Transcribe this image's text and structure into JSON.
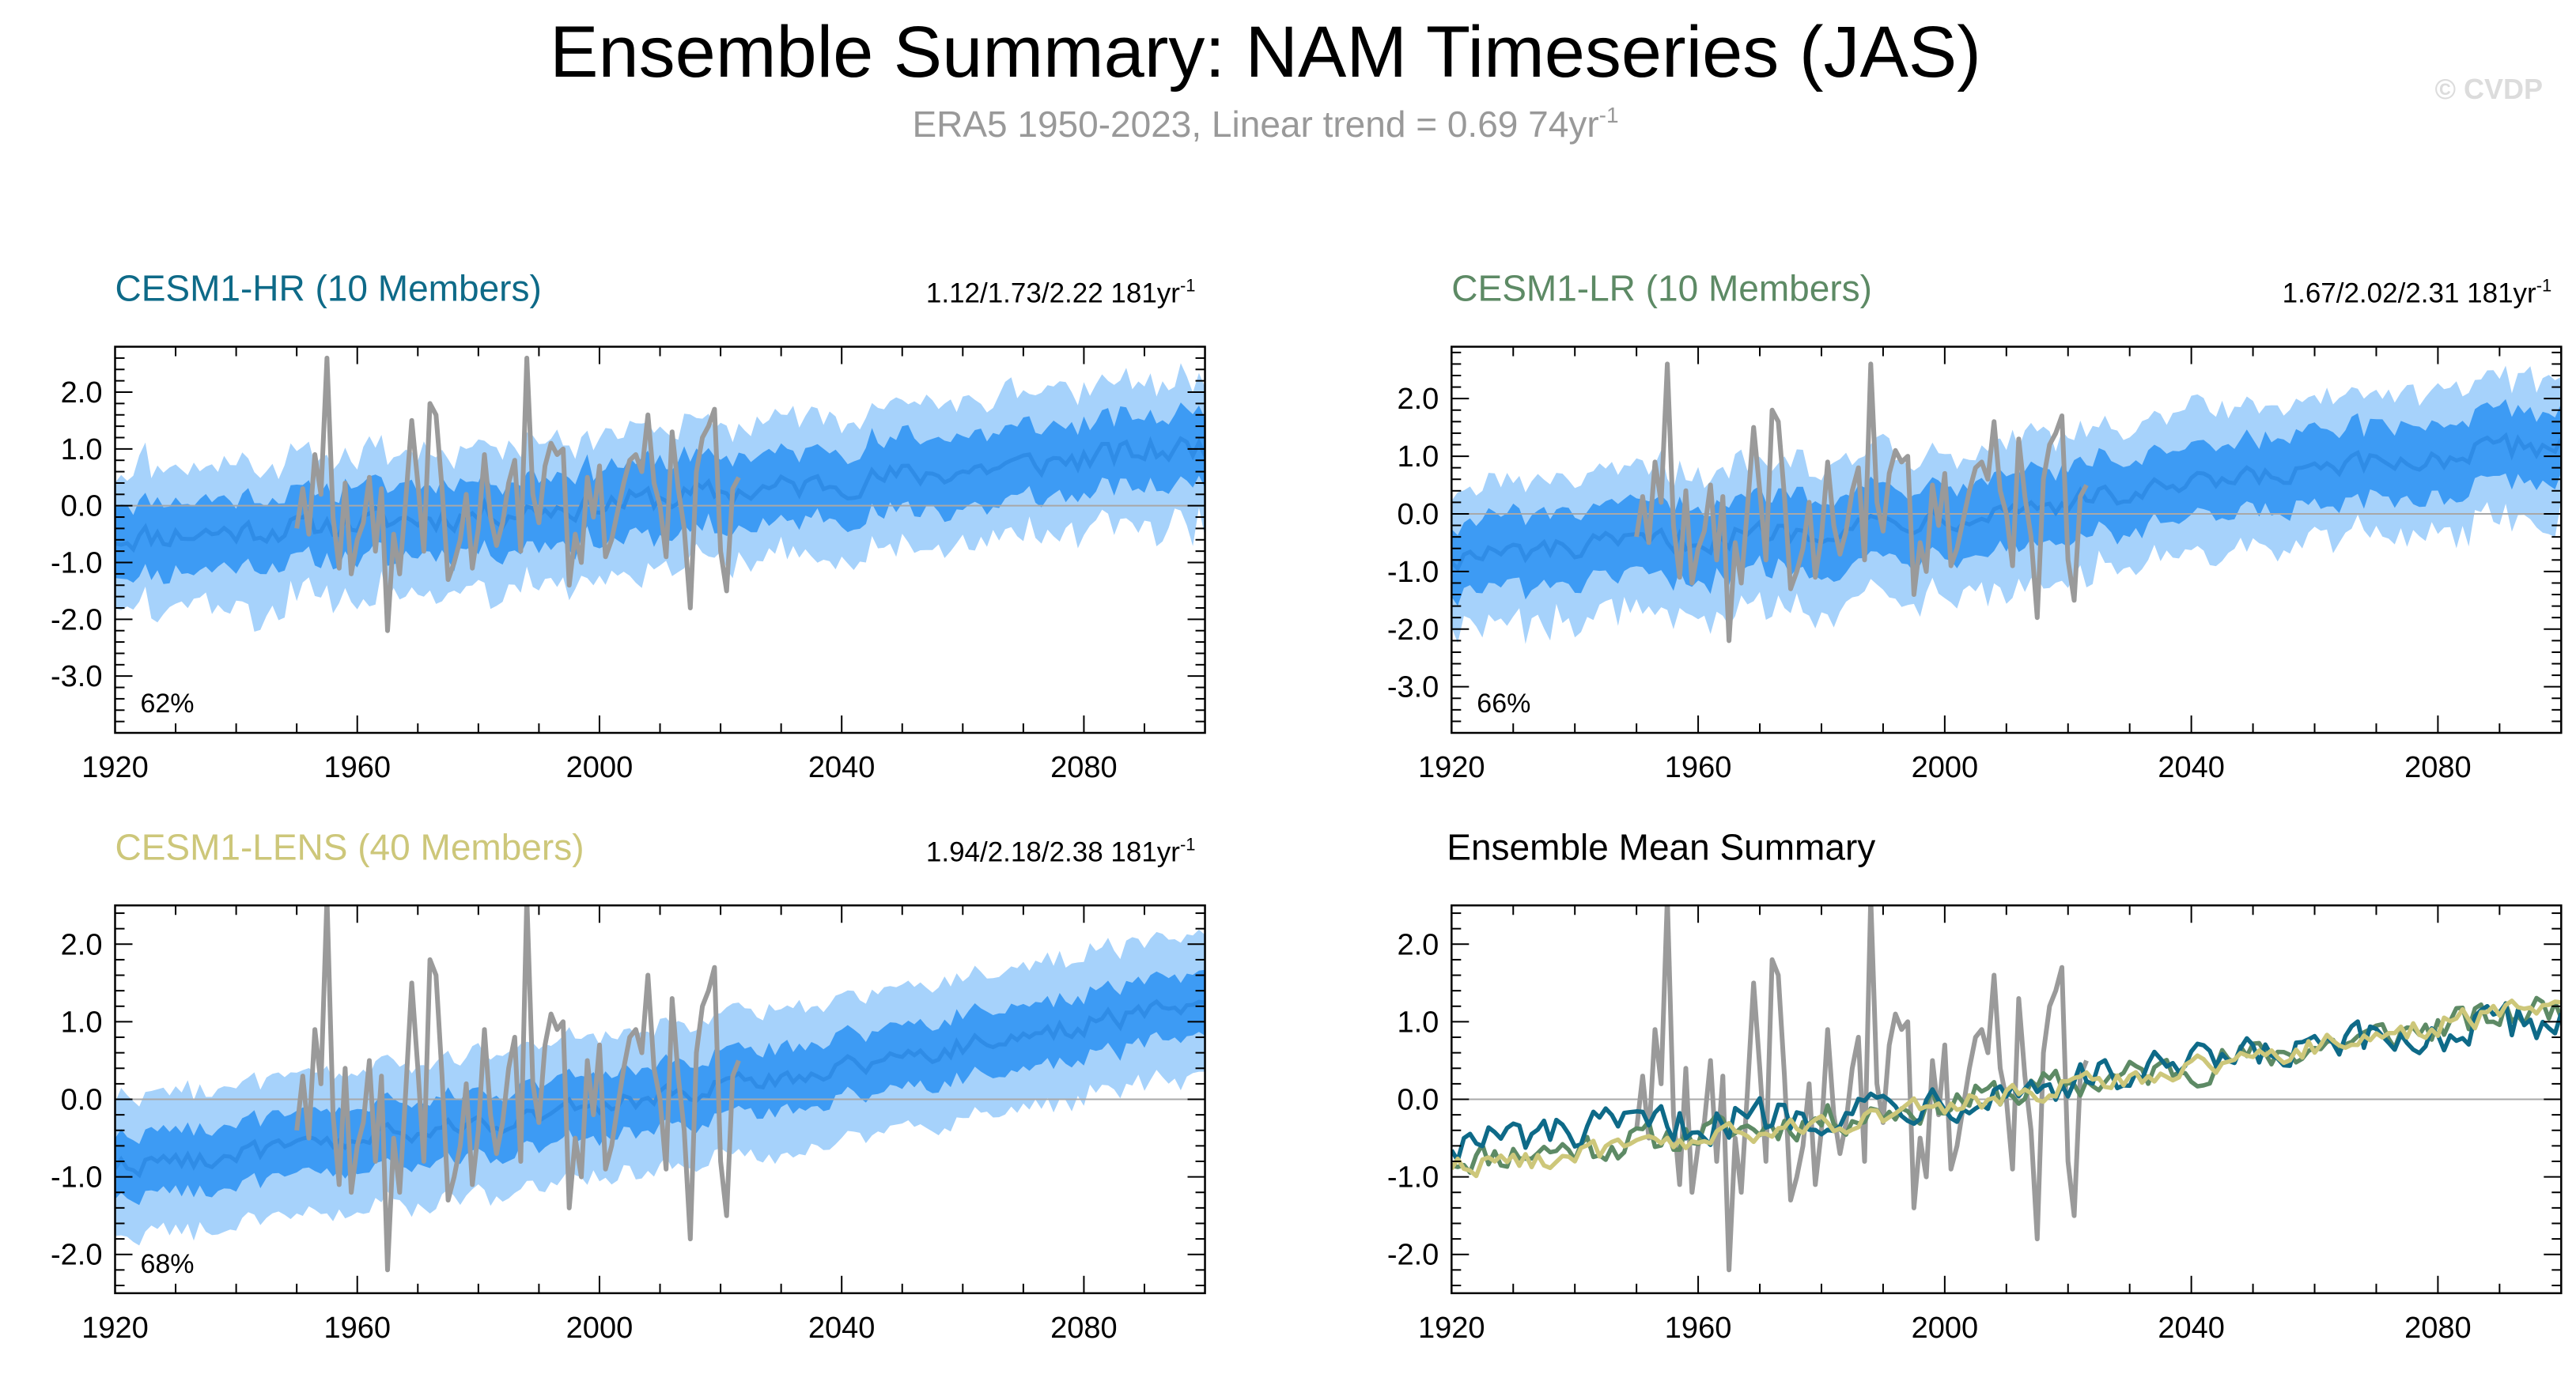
{
  "header": {
    "title": "Ensemble Summary: NAM Timeseries (JAS)",
    "subtitle": "ERA5 1950-2023, Linear trend = 0.69 74yr",
    "subtitle_exponent": "-1",
    "copyright": "© CVDP"
  },
  "colors": {
    "observed": "#9a9a9a",
    "spread_outer": "#a6d2fb",
    "spread_inner": "#3d9bf4",
    "ensemble_mean_line": "#2f8ce6",
    "zero_line": "#a8a8a8",
    "cesm1_hr": "#0e6a88",
    "cesm1_lr": "#5d8a65",
    "cesm1_lens": "#cdc77a"
  },
  "chart_data": [
    {
      "type": "area",
      "id": "hr",
      "title": "CESM1-HR (10 Members)",
      "title_color": "#0e6a88",
      "stats": "1.12/1.73/2.22 181yr",
      "stats_exponent": "-1",
      "percent_label": "62%",
      "xlim": [
        1920,
        2100
      ],
      "ylim": [
        -4.0,
        2.8
      ],
      "xticks": [
        1920,
        1960,
        2000,
        2040,
        2080
      ],
      "yticks": [
        2.0,
        1.0,
        0.0,
        -1.0,
        -2.0,
        -3.0
      ],
      "ytick_labels": [
        "2.0",
        "1.0",
        "0.0",
        "-1.0",
        "-2.0",
        "-3.0"
      ],
      "series": [
        {
          "name": "Ensemble mean",
          "trend": [
            -0.55,
            1.05
          ],
          "noise": 0.22
        },
        {
          "name": "Inner spread (25-75%)",
          "half_width": 0.55,
          "noise": 0.28
        },
        {
          "name": "Outer spread (min-max)",
          "half_width": 1.05,
          "noise": 0.45
        },
        {
          "name": "ERA5 observed",
          "x": [
            1950,
            2023
          ]
        }
      ]
    },
    {
      "type": "area",
      "id": "lr",
      "title": "CESM1-LR (10 Members)",
      "title_color": "#5d8a65",
      "stats": "1.67/2.02/2.31 181yr",
      "stats_exponent": "-1",
      "percent_label": "66%",
      "xlim": [
        1920,
        2100
      ],
      "ylim": [
        -3.8,
        2.9
      ],
      "xticks": [
        1920,
        1960,
        2000,
        2040,
        2080
      ],
      "yticks": [
        2.0,
        1.0,
        0.0,
        -1.0,
        -2.0,
        -3.0
      ],
      "ytick_labels": [
        "2.0",
        "1.0",
        "0.0",
        "-1.0",
        "-2.0",
        "-3.0"
      ],
      "series": [
        {
          "name": "Ensemble mean",
          "trend": [
            -0.75,
            1.25
          ],
          "noise": 0.2
        },
        {
          "name": "Inner spread (25-75%)",
          "half_width": 0.55,
          "noise": 0.25
        },
        {
          "name": "Outer spread (min-max)",
          "half_width": 1.05,
          "noise": 0.42
        },
        {
          "name": "ERA5 observed",
          "x": [
            1950,
            2023
          ]
        }
      ]
    },
    {
      "type": "area",
      "id": "lens",
      "title": "CESM1-LENS (40 Members)",
      "title_color": "#cdc77a",
      "stats": "1.94/2.18/2.38 181yr",
      "stats_exponent": "-1",
      "percent_label": "68%",
      "xlim": [
        1920,
        2100
      ],
      "ylim": [
        -2.5,
        2.5
      ],
      "xticks": [
        1920,
        1960,
        2000,
        2040,
        2080
      ],
      "yticks": [
        2.0,
        1.0,
        0.0,
        -1.0,
        -2.0
      ],
      "ytick_labels": [
        "2.0",
        "1.0",
        "0.0",
        "-1.0",
        "-2.0"
      ],
      "series": [
        {
          "name": "Ensemble mean",
          "trend": [
            -0.85,
            1.25
          ],
          "noise": 0.12
        },
        {
          "name": "Inner spread (25-75%)",
          "half_width": 0.38,
          "noise": 0.08
        },
        {
          "name": "Outer spread (min-max)",
          "half_width": 0.85,
          "noise": 0.14
        },
        {
          "name": "ERA5 observed",
          "x": [
            1950,
            2023
          ]
        }
      ]
    },
    {
      "type": "line",
      "id": "summary",
      "title": "Ensemble Mean Summary",
      "title_color": "#000000",
      "stats": "",
      "stats_exponent": "",
      "percent_label": "",
      "xlim": [
        1920,
        2100
      ],
      "ylim": [
        -2.5,
        2.5
      ],
      "xticks": [
        1920,
        1960,
        2000,
        2040,
        2080
      ],
      "yticks": [
        2.0,
        1.0,
        0.0,
        -1.0,
        -2.0
      ],
      "ytick_labels": [
        "2.0",
        "1.0",
        "0.0",
        "-1.0",
        "-2.0"
      ],
      "series": [
        {
          "name": "ERA5 observed",
          "x": [
            1950,
            2023
          ]
        },
        {
          "name": "CESM1-LR",
          "trend": [
            -0.75,
            1.2
          ],
          "noise": 0.2
        },
        {
          "name": "CESM1-HR",
          "trend": [
            -0.55,
            1.05
          ],
          "noise": 0.24
        },
        {
          "name": "CESM1-LENS",
          "trend": [
            -0.85,
            1.25
          ],
          "noise": 0.13
        }
      ]
    }
  ],
  "observed_series": {
    "name": "ERA5 NAM JAS",
    "x_start": 1950,
    "values": [
      -0.4,
      0.3,
      -0.5,
      0.9,
      0.2,
      2.6,
      -0.2,
      -1.1,
      0.4,
      -1.2,
      -0.6,
      -0.3,
      0.5,
      -0.8,
      0.3,
      -2.2,
      -0.5,
      -1.2,
      0.1,
      1.5,
      0.4,
      -0.8,
      1.8,
      1.6,
      0.3,
      -1.3,
      -1.0,
      -0.6,
      0.2,
      -1.1,
      -0.4,
      0.9,
      -0.2,
      -0.7,
      -0.3,
      0.4,
      0.8,
      -0.8,
      2.6,
      0.2,
      -0.3,
      0.7,
      1.1,
      0.9,
      1.0,
      -1.4,
      -0.5,
      -1.0,
      0.5,
      -0.2,
      0.7,
      -0.9,
      -0.6,
      -0.1,
      0.4,
      0.8,
      0.9,
      0.6,
      1.6,
      0.4,
      0.0,
      -0.9,
      1.3,
      0.3,
      -0.4,
      -1.8,
      0.6,
      1.2,
      1.4,
      1.7,
      -0.8,
      -1.5,
      0.3,
      0.5
    ]
  }
}
